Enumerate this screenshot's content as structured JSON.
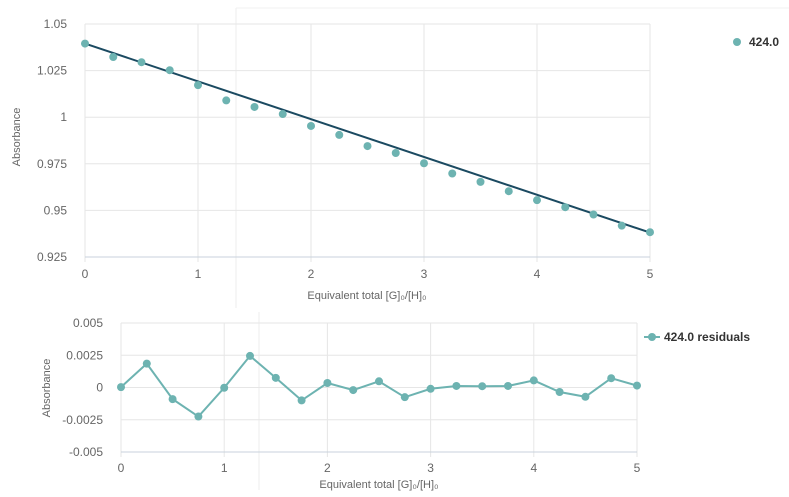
{
  "chart_data": [
    {
      "type": "scatter",
      "xlabel": "Equivalent total [G]₀/[H]₀",
      "ylabel": "Absorbance",
      "xlim": [
        0,
        5
      ],
      "ylim": [
        0.925,
        1.05
      ],
      "x_ticks": [
        "0",
        "1",
        "2",
        "3",
        "4",
        "5"
      ],
      "y_ticks": [
        "0.925",
        "0.95",
        "0.975",
        "1",
        "1.025",
        "1.05"
      ],
      "grid": true,
      "legend_position": "top-right",
      "series": [
        {
          "name": "424.0",
          "color": "#6db3b1",
          "x": [
            0,
            0.25,
            0.5,
            0.75,
            1,
            1.25,
            1.5,
            1.75,
            2,
            2.25,
            2.5,
            2.75,
            3,
            3.25,
            3.5,
            3.75,
            4,
            4.25,
            4.5,
            4.75,
            5
          ],
          "y": [
            1.0395,
            1.0323,
            1.0295,
            1.0252,
            1.0172,
            1.009,
            1.0055,
            1.0017,
            0.9953,
            0.9905,
            0.9845,
            0.9808,
            0.9753,
            0.9698,
            0.9653,
            0.9603,
            0.9555,
            0.9517,
            0.9478,
            0.9418,
            0.9383
          ]
        }
      ],
      "fit_line": {
        "color": "#1b4a61",
        "x": [
          0,
          5
        ],
        "y": [
          1.0395,
          0.9381
        ]
      }
    },
    {
      "type": "line",
      "xlabel": "Equivalent total [G]₀/[H]₀",
      "ylabel": "Absorbance",
      "xlim": [
        0,
        5
      ],
      "ylim": [
        -0.005,
        0.005
      ],
      "x_ticks": [
        "0",
        "1",
        "2",
        "3",
        "4",
        "5"
      ],
      "y_ticks": [
        "-0.005",
        "-0.0025",
        "0",
        "0.0025",
        "0.005"
      ],
      "grid": true,
      "legend_position": "top-right",
      "series": [
        {
          "name": "424.0 residuals",
          "color": "#6db3b1",
          "x": [
            0,
            0.25,
            0.5,
            0.75,
            1,
            1.25,
            1.5,
            1.75,
            2,
            2.25,
            2.5,
            2.75,
            3,
            3.25,
            3.5,
            3.75,
            4,
            4.25,
            4.5,
            4.75,
            5
          ],
          "y": [
            3e-05,
            0.00185,
            -0.0009,
            -0.00225,
            -2e-05,
            0.00245,
            0.00075,
            -0.001,
            0.00035,
            -0.0002,
            0.00048,
            -0.00075,
            -0.0001,
            0.00012,
            0.0001,
            0.00012,
            0.00055,
            -0.00035,
            -0.00072,
            0.00072,
            0.00015
          ]
        }
      ]
    }
  ]
}
